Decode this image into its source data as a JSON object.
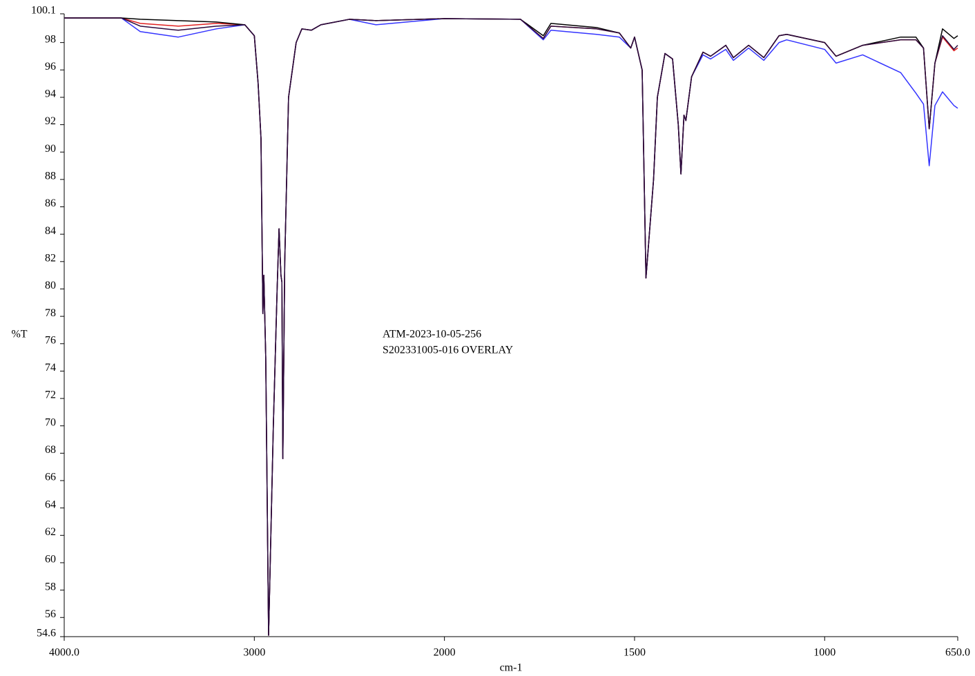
{
  "chart_data": {
    "type": "line",
    "annotations": [
      "ATM-2023-10-05-256",
      "S202331005-016 OVERLAY"
    ],
    "xlabel": "cm-1",
    "ylabel": "%T",
    "x": [
      4000,
      3700,
      3600,
      3400,
      3200,
      3050,
      3000,
      2980,
      2965,
      2955,
      2950,
      2940,
      2925,
      2900,
      2880,
      2870,
      2860,
      2855,
      2850,
      2840,
      2820,
      2780,
      2750,
      2700,
      2650,
      2500,
      2360,
      2000,
      1800,
      1740,
      1720,
      1600,
      1540,
      1510,
      1500,
      1480,
      1470,
      1450,
      1440,
      1420,
      1400,
      1385,
      1378,
      1370,
      1365,
      1350,
      1320,
      1300,
      1260,
      1240,
      1200,
      1160,
      1120,
      1100,
      1000,
      970,
      900,
      800,
      760,
      740,
      725,
      710,
      690,
      660,
      650
    ],
    "series": [
      {
        "color": "#3333ff",
        "values": [
          99.8,
          99.8,
          98.8,
          98.4,
          99.0,
          99.3,
          98.5,
          95,
          91,
          78.2,
          81,
          75,
          54.7,
          70,
          80,
          84.4,
          81,
          80.5,
          67.6,
          82,
          94,
          98,
          99.0,
          98.9,
          99.3,
          99.7,
          99.3,
          99.75,
          99.7,
          98.2,
          98.9,
          98.6,
          98.4,
          97.6,
          98.4,
          96,
          80.8,
          88,
          94,
          97.2,
          96.8,
          92,
          88.4,
          92.7,
          92.3,
          95.5,
          97.1,
          96.8,
          97.5,
          96.7,
          97.6,
          96.7,
          98.0,
          98.2,
          97.5,
          96.5,
          97.1,
          95.8,
          94.3,
          93.5,
          89.0,
          93.4,
          94.4,
          93.4,
          93.2
        ]
      },
      {
        "color": "#e02020",
        "values": [
          99.8,
          99.8,
          99.4,
          99.2,
          99.4,
          99.3,
          98.5,
          95,
          91,
          78.2,
          81,
          75,
          54.7,
          70,
          80,
          84.4,
          81,
          80.5,
          67.6,
          82,
          94,
          98,
          99.0,
          98.9,
          99.3,
          99.7,
          99.6,
          99.75,
          99.7,
          98.3,
          99.2,
          99.0,
          98.7,
          97.6,
          98.4,
          96,
          80.8,
          88,
          94,
          97.2,
          96.8,
          92,
          88.4,
          92.7,
          92.3,
          95.5,
          97.3,
          97.0,
          97.8,
          96.9,
          97.8,
          96.9,
          98.5,
          98.6,
          98.0,
          97.0,
          97.8,
          98.2,
          98.2,
          97.6,
          91.7,
          96.5,
          98.4,
          97.4,
          97.6
        ]
      },
      {
        "color": "#000000",
        "values": [
          99.8,
          99.8,
          99.7,
          99.6,
          99.5,
          99.3,
          98.5,
          95,
          91,
          78.2,
          81,
          75,
          54.7,
          70,
          80,
          84.4,
          81,
          80.5,
          67.6,
          82,
          94,
          98,
          99.0,
          98.9,
          99.3,
          99.7,
          99.6,
          99.75,
          99.7,
          98.5,
          99.4,
          99.1,
          98.7,
          97.6,
          98.4,
          96,
          80.8,
          88,
          94,
          97.2,
          96.8,
          92,
          88.4,
          92.7,
          92.3,
          95.5,
          97.3,
          97.0,
          97.8,
          96.9,
          97.8,
          96.9,
          98.5,
          98.6,
          98.0,
          97.0,
          97.8,
          98.4,
          98.4,
          97.6,
          91.7,
          96.5,
          99.0,
          98.3,
          98.5
        ]
      },
      {
        "color": "#2b0a3d",
        "values": [
          99.8,
          99.8,
          99.2,
          98.9,
          99.2,
          99.3,
          98.5,
          95,
          91,
          78.2,
          81,
          75,
          54.7,
          70,
          80,
          84.4,
          81,
          80.5,
          67.6,
          82,
          94,
          98,
          99.0,
          98.9,
          99.3,
          99.7,
          99.6,
          99.75,
          99.7,
          98.3,
          99.2,
          99.0,
          98.7,
          97.6,
          98.4,
          96,
          80.8,
          88,
          94,
          97.2,
          96.8,
          92,
          88.4,
          92.7,
          92.3,
          95.5,
          97.3,
          97.0,
          97.8,
          96.9,
          97.8,
          96.9,
          98.5,
          98.6,
          98.0,
          97.0,
          97.8,
          98.2,
          98.2,
          97.6,
          91.7,
          96.5,
          98.5,
          97.5,
          97.8
        ]
      }
    ],
    "xlim": [
      4000,
      650
    ],
    "x_scale_break": 2000,
    "x_scale_factor": 2,
    "xticks": [
      {
        "value": 4000,
        "label": "4000.0"
      },
      3000,
      2000,
      1500,
      1000,
      {
        "value": 650,
        "label": "650.0"
      }
    ],
    "ylim": [
      54.6,
      100.1
    ],
    "yticks": [
      54.6,
      56,
      58,
      60,
      62,
      64,
      66,
      68,
      70,
      72,
      74,
      76,
      78,
      80,
      82,
      84,
      86,
      88,
      90,
      92,
      94,
      96,
      98,
      100.1
    ]
  }
}
